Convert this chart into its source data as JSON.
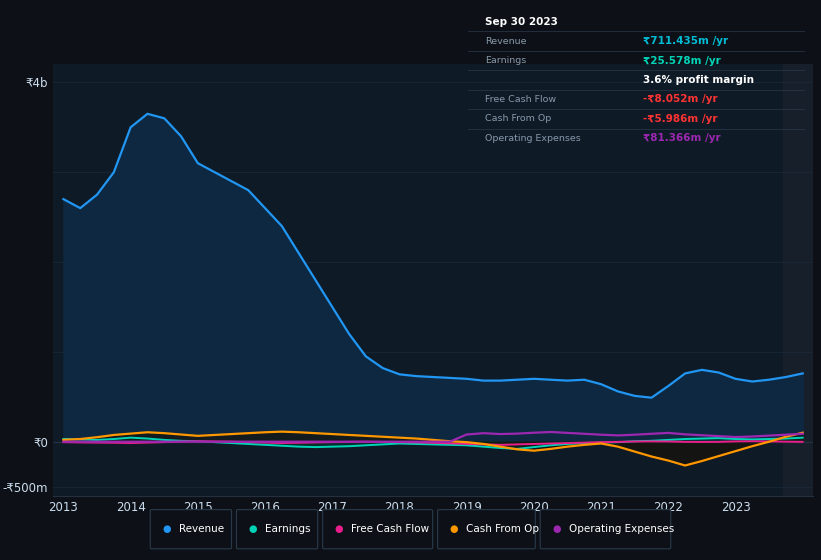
{
  "bg_color": "#0d1117",
  "plot_bg_color": "#0e1a26",
  "grid_color": "#1a2a3a",
  "revenue_color": "#2196f3",
  "earnings_color": "#00d4b8",
  "fcf_color": "#e91e8c",
  "cashfromop_color": "#ff9800",
  "opex_color": "#9c27b0",
  "revenue_fill_color": "#0d2840",
  "years": [
    2013.0,
    2013.25,
    2013.5,
    2013.75,
    2014.0,
    2014.25,
    2014.5,
    2014.75,
    2015.0,
    2015.25,
    2015.5,
    2015.75,
    2016.0,
    2016.25,
    2016.5,
    2016.75,
    2017.0,
    2017.25,
    2017.5,
    2017.75,
    2018.0,
    2018.25,
    2018.5,
    2018.75,
    2019.0,
    2019.25,
    2019.5,
    2019.75,
    2020.0,
    2020.25,
    2020.5,
    2020.75,
    2021.0,
    2021.25,
    2021.5,
    2021.75,
    2022.0,
    2022.25,
    2022.5,
    2022.75,
    2023.0,
    2023.25,
    2023.5,
    2023.75,
    2024.0
  ],
  "revenue": [
    2700,
    2600,
    2750,
    3000,
    3500,
    3650,
    3600,
    3400,
    3100,
    3000,
    2900,
    2800,
    2600,
    2400,
    2100,
    1800,
    1500,
    1200,
    950,
    820,
    750,
    730,
    720,
    710,
    700,
    680,
    680,
    690,
    700,
    690,
    680,
    690,
    640,
    560,
    510,
    490,
    620,
    760,
    800,
    770,
    700,
    670,
    690,
    720,
    760
  ],
  "earnings": [
    30,
    25,
    20,
    30,
    45,
    35,
    20,
    10,
    5,
    -5,
    -15,
    -25,
    -35,
    -45,
    -55,
    -60,
    -55,
    -50,
    -40,
    -30,
    -20,
    -25,
    -30,
    -35,
    -40,
    -55,
    -70,
    -80,
    -60,
    -40,
    -25,
    -15,
    -10,
    -5,
    5,
    10,
    20,
    30,
    35,
    40,
    30,
    25,
    30,
    35,
    45
  ],
  "fcf": [
    -5,
    -8,
    -10,
    -12,
    -15,
    -10,
    -5,
    0,
    5,
    3,
    0,
    -5,
    -10,
    -15,
    -12,
    -8,
    -5,
    -2,
    0,
    -3,
    -5,
    -8,
    -12,
    -18,
    -25,
    -30,
    -35,
    -30,
    -25,
    -20,
    -15,
    -10,
    -5,
    -2,
    2,
    3,
    2,
    -2,
    -3,
    -2,
    3,
    5,
    3,
    0,
    -2
  ],
  "cashfromop": [
    20,
    30,
    50,
    75,
    90,
    105,
    95,
    80,
    65,
    75,
    85,
    95,
    105,
    112,
    105,
    95,
    85,
    75,
    65,
    55,
    45,
    35,
    20,
    5,
    -5,
    -25,
    -55,
    -85,
    -100,
    -80,
    -55,
    -35,
    -20,
    -55,
    -110,
    -165,
    -210,
    -265,
    -215,
    -160,
    -105,
    -50,
    0,
    55,
    100
  ],
  "opex": [
    0,
    0,
    0,
    0,
    0,
    0,
    0,
    0,
    0,
    0,
    0,
    0,
    0,
    0,
    0,
    0,
    0,
    0,
    0,
    0,
    0,
    0,
    0,
    0,
    80,
    95,
    85,
    90,
    100,
    108,
    98,
    88,
    78,
    70,
    78,
    88,
    98,
    82,
    72,
    62,
    52,
    58,
    68,
    78,
    88
  ],
  "xlim": [
    2012.85,
    2024.15
  ],
  "ylim_bottom": -600,
  "ylim_top": 4200,
  "yticks": [
    -500,
    0,
    4000
  ],
  "ytick_labels": [
    "-₹500m",
    "₹0",
    "₹4b"
  ],
  "xtick_positions": [
    2013,
    2014,
    2015,
    2016,
    2017,
    2018,
    2019,
    2020,
    2021,
    2022,
    2023
  ],
  "xtick_labels": [
    "2013",
    "2014",
    "2015",
    "2016",
    "2017",
    "2018",
    "2019",
    "2020",
    "2021",
    "2022",
    "2023"
  ],
  "legend_items": [
    "Revenue",
    "Earnings",
    "Free Cash Flow",
    "Cash From Op",
    "Operating Expenses"
  ],
  "legend_colors": [
    "#2196f3",
    "#00d4b8",
    "#e91e8c",
    "#ff9800",
    "#9c27b0"
  ],
  "shaded_x_start": 2023.7,
  "info_box_date": "Sep 30 2023",
  "info_revenue_label": "Revenue",
  "info_revenue_val": "₹711.435m /yr",
  "info_revenue_color": "#00bcd4",
  "info_earnings_label": "Earnings",
  "info_earnings_val": "₹25.578m /yr",
  "info_earnings_color": "#00d4b8",
  "info_margin_val": "3.6% profit margin",
  "info_fcf_label": "Free Cash Flow",
  "info_fcf_val": "-₹8.052m /yr",
  "info_fcf_color": "#ff3333",
  "info_cashop_label": "Cash From Op",
  "info_cashop_val": "-₹5.986m /yr",
  "info_cashop_color": "#ff3333",
  "info_opex_label": "Operating Expenses",
  "info_opex_val": "₹81.366m /yr",
  "info_opex_color": "#9c27b0",
  "label_color": "#8899aa",
  "text_color": "#ccddee"
}
